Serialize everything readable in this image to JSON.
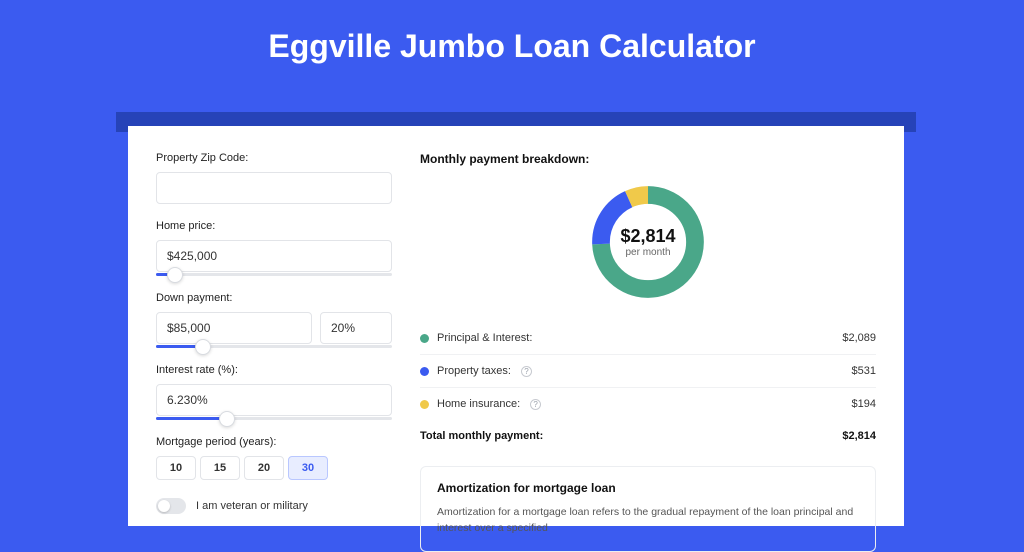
{
  "page": {
    "title": "Eggville Jumbo Loan Calculator",
    "background_color": "#3b5bf0",
    "shadow_color": "#2643b8",
    "card_background": "#ffffff"
  },
  "form": {
    "zip": {
      "label": "Property Zip Code:",
      "value": ""
    },
    "home_price": {
      "label": "Home price:",
      "value": "$425,000",
      "slider_position_pct": 8
    },
    "down_payment": {
      "label": "Down payment:",
      "value": "$85,000",
      "percent": "20%",
      "slider_position_pct": 20
    },
    "interest_rate": {
      "label": "Interest rate (%):",
      "value": "6.230%",
      "slider_position_pct": 30
    },
    "mortgage_period": {
      "label": "Mortgage period (years):",
      "options": [
        "10",
        "15",
        "20",
        "30"
      ],
      "selected": "30"
    },
    "veteran": {
      "label": "I am veteran or military",
      "checked": false
    }
  },
  "breakdown": {
    "title": "Monthly payment breakdown:",
    "donut": {
      "amount": "$2,814",
      "sub": "per month",
      "segments": [
        {
          "key": "principal_interest",
          "value": 2089,
          "fraction": 0.742,
          "color": "#4aa789"
        },
        {
          "key": "property_taxes",
          "value": 531,
          "fraction": 0.189,
          "color": "#3b5bf0"
        },
        {
          "key": "home_insurance",
          "value": 194,
          "fraction": 0.069,
          "color": "#f0c94a"
        }
      ],
      "background_color": "#ffffff",
      "ring_thickness": 18
    },
    "legend": [
      {
        "label": "Principal & Interest:",
        "value": "$2,089",
        "color": "#4aa789",
        "info": false
      },
      {
        "label": "Property taxes:",
        "value": "$531",
        "color": "#3b5bf0",
        "info": true
      },
      {
        "label": "Home insurance:",
        "value": "$194",
        "color": "#f0c94a",
        "info": true
      }
    ],
    "total": {
      "label": "Total monthly payment:",
      "value": "$2,814"
    }
  },
  "amortization": {
    "title": "Amortization for mortgage loan",
    "body": "Amortization for a mortgage loan refers to the gradual repayment of the loan principal and interest over a specified"
  }
}
